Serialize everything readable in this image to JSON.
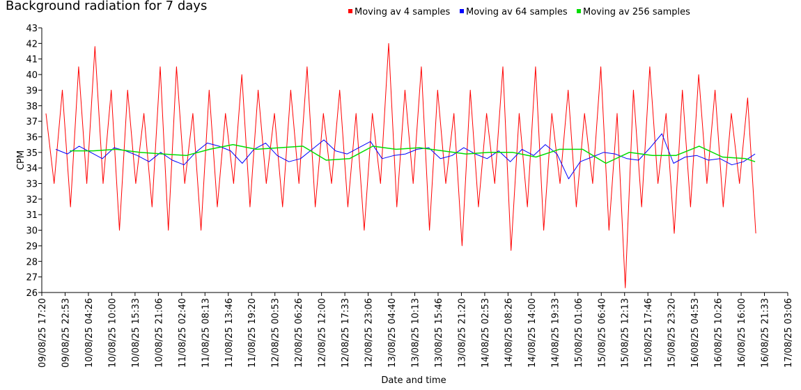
{
  "chart_data": {
    "type": "line",
    "title": "Background radiation for 7 days",
    "xlabel": "Date and time",
    "ylabel": "CPM",
    "ylim": [
      26,
      43
    ],
    "y_ticks": [
      26,
      27,
      28,
      29,
      30,
      31,
      32,
      33,
      34,
      35,
      36,
      37,
      38,
      39,
      40,
      41,
      42,
      43
    ],
    "x_tick_labels": [
      "09/08/25 17:20",
      "09/08/25 22:53",
      "10/08/25 04:26",
      "10/08/25 10:00",
      "10/08/25 15:33",
      "10/08/25 21:06",
      "11/08/25 02:40",
      "11/08/25 08:13",
      "11/08/25 13:46",
      "11/08/25 19:20",
      "12/08/25 00:53",
      "12/08/25 06:26",
      "12/08/25 12:00",
      "12/08/25 17:33",
      "12/08/25 23:06",
      "13/08/25 04:40",
      "13/08/25 10:13",
      "13/08/25 15:46",
      "13/08/25 21:20",
      "14/08/25 02:53",
      "14/08/25 08:26",
      "14/08/25 14:00",
      "14/08/25 19:33",
      "15/08/25 01:06",
      "15/08/25 06:40",
      "15/08/25 12:13",
      "15/08/25 17:46",
      "15/08/25 23:20",
      "16/08/25 04:53",
      "16/08/25 10:26",
      "16/08/25 16:00",
      "16/08/25 21:33",
      "17/08/25 03:06"
    ],
    "x_range_hours": [
      0,
      32
    ],
    "grid": false,
    "legend_position": "top",
    "series": [
      {
        "name": "Moving av 4 samples",
        "color": "#ff0000",
        "x_hours": [
          0.18,
          0.53,
          0.88,
          1.23,
          1.58,
          1.93,
          2.28,
          2.63,
          2.98,
          3.33,
          3.68,
          4.03,
          4.38,
          4.73,
          5.08,
          5.43,
          5.78,
          6.13,
          6.48,
          6.83,
          7.18,
          7.53,
          7.88,
          8.23,
          8.58,
          8.93,
          9.28,
          9.63,
          9.98,
          10.33,
          10.68,
          11.03,
          11.38,
          11.73,
          12.08,
          12.43,
          12.78,
          13.13,
          13.48,
          13.83,
          14.18,
          14.53,
          14.88,
          15.23,
          15.58,
          15.93,
          16.28,
          16.63,
          16.98,
          17.33,
          17.68,
          18.03,
          18.38,
          18.73,
          19.08,
          19.43,
          19.78,
          20.13,
          20.48,
          20.83,
          21.18,
          21.53,
          21.88,
          22.23,
          22.58,
          22.93,
          23.28,
          23.63,
          23.98,
          24.33,
          24.68,
          25.03,
          25.38,
          25.73,
          26.08,
          26.43,
          26.78,
          27.13,
          27.48,
          27.83,
          28.18,
          28.53,
          28.88,
          29.23,
          29.58,
          29.93,
          30.28,
          30.63
        ],
        "values": [
          37.5,
          33,
          39,
          31.5,
          40.5,
          33,
          41.8,
          33,
          39,
          30,
          39,
          33,
          37.5,
          31.5,
          40.5,
          30,
          40.5,
          33,
          37.5,
          30,
          39,
          31.5,
          37.5,
          33,
          40,
          31.5,
          39,
          33,
          37.5,
          31.5,
          39,
          33,
          40.5,
          31.5,
          37.5,
          33,
          39,
          31.5,
          37.5,
          30,
          37.5,
          33,
          42,
          31.5,
          39,
          33,
          40.5,
          30,
          39,
          33,
          37.5,
          29,
          39,
          31.5,
          37.5,
          33,
          40.5,
          28.7,
          37.5,
          31.5,
          40.5,
          30,
          37.5,
          33,
          39,
          31.5,
          37.5,
          33,
          40.5,
          30,
          37.5,
          26.3,
          39,
          31.5,
          40.5,
          33,
          37.5,
          29.8,
          39,
          31.5,
          40,
          33,
          39,
          31.5,
          37.5,
          33,
          38.5,
          29.8
        ]
      },
      {
        "name": "Moving av 64 samples",
        "color": "#0000ff",
        "x_hours": [
          0.6,
          1.1,
          1.6,
          2.1,
          2.6,
          3.1,
          3.6,
          4.1,
          4.6,
          5.1,
          5.6,
          6.1,
          6.6,
          7.1,
          7.6,
          8.1,
          8.6,
          9.1,
          9.6,
          10.1,
          10.6,
          11.1,
          11.6,
          12.1,
          12.6,
          13.1,
          13.6,
          14.1,
          14.6,
          15.1,
          15.6,
          16.1,
          16.6,
          17.1,
          17.6,
          18.1,
          18.6,
          19.1,
          19.6,
          20.1,
          20.6,
          21.1,
          21.6,
          22.1,
          22.6,
          23.1,
          23.6,
          24.1,
          24.6,
          25.1,
          25.6,
          26.1,
          26.6,
          27.1,
          27.6,
          28.1,
          28.6,
          29.1,
          29.6,
          30.1,
          30.6
        ],
        "values": [
          35.2,
          34.9,
          35.4,
          35,
          34.6,
          35.3,
          35.1,
          34.8,
          34.4,
          35,
          34.5,
          34.2,
          35,
          35.6,
          35.4,
          35.1,
          34.3,
          35.2,
          35.6,
          34.8,
          34.4,
          34.6,
          35.2,
          35.8,
          35.1,
          34.9,
          35.3,
          35.7,
          34.6,
          34.8,
          34.9,
          35.2,
          35.3,
          34.6,
          34.8,
          35.3,
          34.9,
          34.6,
          35.1,
          34.4,
          35.2,
          34.8,
          35.5,
          34.9,
          33.3,
          34.4,
          34.7,
          35,
          34.9,
          34.6,
          34.5,
          35.3,
          36.2,
          34.3,
          34.7,
          34.8,
          34.5,
          34.6,
          34.2,
          34.4,
          34.9
        ]
      },
      {
        "name": "Moving av 256 samples",
        "color": "#00dd00",
        "x_hours": [
          1.2,
          2.2,
          3.2,
          4.2,
          5.2,
          6.2,
          7.2,
          8.2,
          9.2,
          10.2,
          11.2,
          12.2,
          13.2,
          14.2,
          15.2,
          16.2,
          17.2,
          18.2,
          19.2,
          20.2,
          21.2,
          22.2,
          23.2,
          24.2,
          25.2,
          26.2,
          27.2,
          28.2,
          29.2,
          30.2,
          30.6
        ],
        "values": [
          35.1,
          35.1,
          35.2,
          35,
          34.9,
          34.8,
          35.2,
          35.5,
          35.2,
          35.3,
          35.4,
          34.5,
          34.6,
          35.4,
          35.2,
          35.3,
          35.1,
          34.9,
          35,
          35,
          34.7,
          35.2,
          35.2,
          34.3,
          35,
          34.8,
          34.8,
          35.4,
          34.7,
          34.6,
          34.4
        ]
      }
    ]
  }
}
